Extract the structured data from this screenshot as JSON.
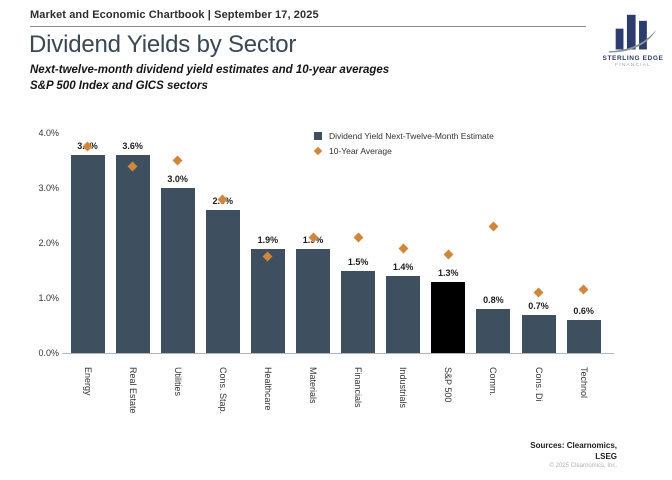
{
  "header": {
    "chartbook_line": "Market and Economic Chartbook | September 17, 2025",
    "title": "Dividend Yields by Sector",
    "subtitle_line1": "Next-twelve-month dividend yield estimates and 10-year averages",
    "subtitle_line2": "S&P 500 Index and GICS sectors"
  },
  "logo": {
    "name": "STERLING EDGE",
    "subname": "FINANCIAL"
  },
  "legend": {
    "bar_label": "Dividend Yield Next-Twelve-Month Estimate",
    "avg_label": "10-Year Average"
  },
  "footer": {
    "sources_line1": "Sources: Clearnomics,",
    "sources_line2": "LSEG",
    "copyright": "© 2025 Clearnomics, Inc."
  },
  "colors": {
    "bar": "#3E4F5F",
    "highlight_bar": "#000000",
    "diamond": "#D0873C",
    "logo_navy": "#2B3C6D",
    "logo_swoosh": "#8A8F98",
    "axis": "#B3B3B3"
  },
  "chart_data": {
    "type": "bar",
    "title": "Dividend Yields by Sector",
    "subtitle": "Next-twelve-month dividend yield estimates and 10-year averages — S&P 500 Index and GICS sectors",
    "categories": [
      "Energy",
      "Real Estate",
      "Utilities",
      "Cons. Stap.",
      "Healthcare",
      "Materials",
      "Financials",
      "Industrials",
      "S&P 500",
      "Comm.",
      "Cons. Di",
      "Technol"
    ],
    "series": [
      {
        "name": "Dividend Yield Next-Twelve-Month Estimate",
        "values": [
          3.6,
          3.6,
          3.0,
          2.6,
          1.9,
          1.9,
          1.5,
          1.4,
          1.3,
          0.8,
          0.7,
          0.6
        ]
      },
      {
        "name": "10-Year Average",
        "values": [
          3.75,
          3.4,
          3.5,
          2.8,
          1.75,
          2.1,
          2.1,
          1.9,
          1.8,
          2.3,
          1.1,
          1.15
        ]
      }
    ],
    "bar_labels": [
      "3.6%",
      "3.6%",
      "3.0%",
      "2.6%",
      "1.9%",
      "1.9%",
      "1.5%",
      "1.4%",
      "1.3%",
      "0.8%",
      "0.7%",
      "0.6%"
    ],
    "highlight_category": "S&P 500",
    "xlabel": "",
    "ylabel": "",
    "ylim": [
      0,
      4
    ],
    "yticks": [
      "0.0%",
      "1.0%",
      "2.0%",
      "3.0%",
      "4.0%"
    ],
    "grid": false,
    "legend_position": "top-right"
  }
}
